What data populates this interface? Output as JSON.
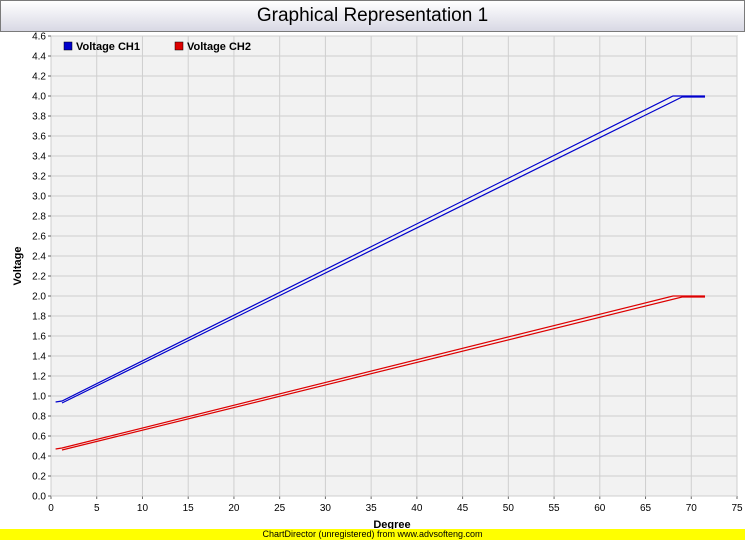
{
  "chart_data": {
    "type": "line",
    "title": "Graphical Representation 1",
    "xlabel": "Degree",
    "ylabel": "Voltage",
    "xlim": [
      0,
      75
    ],
    "ylim": [
      0,
      4.6
    ],
    "x_ticks": [
      0,
      5,
      10,
      15,
      20,
      25,
      30,
      35,
      40,
      45,
      50,
      55,
      60,
      65,
      70,
      75
    ],
    "y_ticks": [
      0.0,
      0.2,
      0.4,
      0.6,
      0.8,
      1.0,
      1.2,
      1.4,
      1.6,
      1.8,
      2.0,
      2.2,
      2.4,
      2.6,
      2.8,
      3.0,
      3.2,
      3.4,
      3.6,
      3.8,
      4.0,
      4.2,
      4.4,
      4.6
    ],
    "y_tick_decimals": 1,
    "grid": true,
    "legend_position": "top-left",
    "series": [
      {
        "name": "Voltage CH1",
        "color": "#0000cc",
        "segments": [
          [
            [
              0.5,
              0.94
            ],
            [
              1.2,
              0.95
            ],
            [
              68,
              4.0
            ],
            [
              71.5,
              4.0
            ]
          ],
          [
            [
              1.2,
              0.93
            ],
            [
              69,
              3.99
            ],
            [
              71.5,
              3.99
            ]
          ]
        ]
      },
      {
        "name": "Voltage CH2",
        "color": "#dd0000",
        "segments": [
          [
            [
              0.5,
              0.47
            ],
            [
              1.2,
              0.48
            ],
            [
              68,
              2.0
            ],
            [
              71.5,
              2.0
            ]
          ],
          [
            [
              1.2,
              0.46
            ],
            [
              69,
              1.99
            ],
            [
              71.5,
              1.99
            ]
          ]
        ]
      }
    ]
  },
  "footer_text": "ChartDirector (unregistered) from www.advsofteng.com"
}
